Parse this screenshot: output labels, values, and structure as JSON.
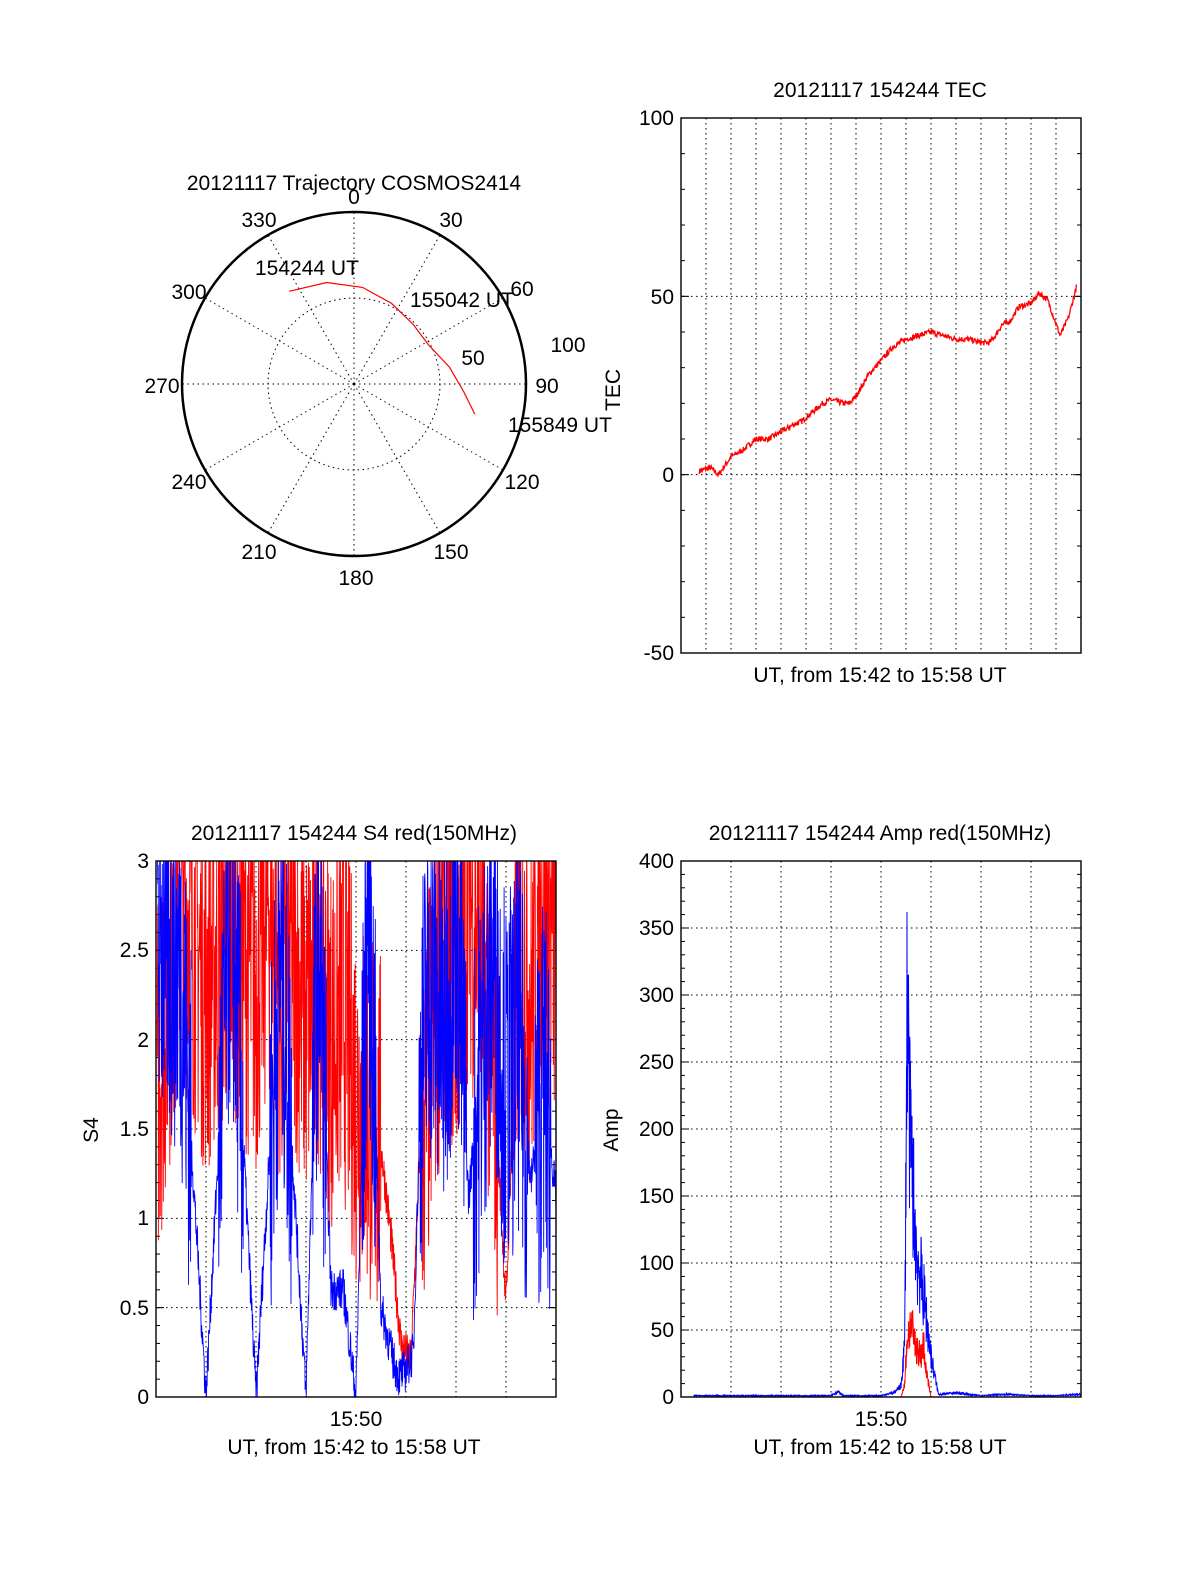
{
  "polar": {
    "title": "20121117 Trajectory COSMOS2414",
    "azimuth_labels": [
      "0",
      "30",
      "60",
      "90",
      "120",
      "150",
      "180",
      "210",
      "240",
      "270",
      "300",
      "330"
    ],
    "elevation_labels": [
      "50",
      "100"
    ],
    "start_label": "154244 UT",
    "mid_label": "155042 UT",
    "end_label": "155849 UT",
    "track_color": "#ff0000"
  },
  "tec": {
    "title": "20121117 154244 TEC",
    "xlabel": "UT, from 15:42 to 15:58 UT",
    "ylabel": "TEC",
    "ytick_labels": [
      "-50",
      "0",
      "50",
      "100"
    ]
  },
  "s4": {
    "title": "20121117 154244 S4 red(150MHz)",
    "xlabel": "UT, from 15:42 to 15:58 UT",
    "ylabel": "S4",
    "xtick_label": "15:50",
    "ytick_labels": [
      "0",
      "0.5",
      "1",
      "1.5",
      "2",
      "2.5",
      "3"
    ]
  },
  "amp": {
    "title": "20121117 154244 Amp red(150MHz)",
    "xlabel": "UT, from 15:42 to 15:58 UT",
    "ylabel": "Amp",
    "xtick_label": "15:50",
    "ytick_labels": [
      "0",
      "50",
      "100",
      "150",
      "200",
      "250",
      "300",
      "350",
      "400"
    ]
  },
  "colors": {
    "red": "#ff0000",
    "blue": "#0000ff"
  },
  "chart_data": [
    {
      "type": "scatter",
      "title": "20121117 Trajectory COSMOS2414",
      "projection": "polar",
      "series": [
        {
          "points": [
            {
              "az": 325,
              "el": 70,
              "ut": "154244"
            },
            {
              "az": 345,
              "el": 65
            },
            {
              "az": 5,
              "el": 60
            },
            {
              "az": 25,
              "el": 55
            },
            {
              "az": 45,
              "el": 52,
              "ut": "155042"
            },
            {
              "az": 62,
              "el": 52
            },
            {
              "az": 80,
              "el": 60
            },
            {
              "az": 94,
              "el": 68
            },
            {
              "az": 104,
              "el": 77,
              "ut": "155849"
            }
          ]
        }
      ],
      "rlim": [
        0,
        100
      ]
    },
    {
      "type": "line",
      "title": "20121117 154244 TEC",
      "xlabel": "UT, from 15:42 to 15:58 UT",
      "ylabel": "TEC",
      "xlim": [
        "15:42",
        "15:58"
      ],
      "ylim": [
        -50,
        100
      ],
      "grid": true,
      "series": [
        {
          "color": "#ff0000",
          "x": [
            "15:42:44",
            "15:43:10",
            "15:43:30",
            "15:44:00",
            "15:44:30",
            "15:45:00",
            "15:45:30",
            "15:46:00",
            "15:46:30",
            "15:46:50",
            "15:47:10",
            "15:47:40",
            "15:48:00",
            "15:48:30",
            "15:48:45",
            "15:49:00",
            "15:49:30",
            "15:50:00",
            "15:50:30",
            "15:51:00",
            "15:51:30",
            "15:52:00",
            "15:52:30",
            "15:53:00",
            "15:53:30",
            "15:54:00",
            "15:54:20",
            "15:54:35",
            "15:54:50",
            "15:55:10",
            "15:55:30",
            "15:56:00",
            "15:56:20",
            "15:56:40",
            "15:57:10",
            "15:57:30",
            "15:57:50"
          ],
          "values": [
            1,
            2,
            0,
            5,
            7,
            10,
            10,
            12,
            14,
            15,
            17,
            20,
            21,
            20,
            20,
            22,
            28,
            32,
            36,
            38,
            39,
            40,
            39,
            38,
            38,
            37,
            37,
            39,
            42,
            43,
            47,
            48,
            51,
            49,
            39,
            44,
            53
          ]
        }
      ]
    },
    {
      "type": "line",
      "title": "20121117 154244 S4 red(150MHz)",
      "xlabel": "UT, from 15:42 to 15:58 UT",
      "ylabel": "S4",
      "xticks": [
        "15:50"
      ],
      "xlim": [
        "15:42",
        "15:58"
      ],
      "ylim": [
        0,
        3
      ],
      "grid": true,
      "series": [
        {
          "color": "#ff0000",
          "x_minutes": [
            0.05,
            1,
            2,
            3,
            4,
            4.5,
            5,
            5.5,
            6,
            6.5,
            7,
            7.5,
            8,
            8.5,
            9,
            9.4,
            9.8,
            10.2,
            10.5,
            11,
            11.5,
            12,
            12.5,
            13,
            13.5,
            14,
            14.5,
            15,
            15.5,
            16
          ],
          "values": [
            1.8,
            2.9,
            2.3,
            2.7,
            2.3,
            2.8,
            2.2,
            2.5,
            2.1,
            2.4,
            2.0,
            2.2,
            1.7,
            1.6,
            1.4,
            0.9,
            0.3,
            0.2,
            1.2,
            1.9,
            2.6,
            2.3,
            2.9,
            2.5,
            1.9,
            0.5,
            2.6,
            2.2,
            2.9,
            2.4
          ]
        },
        {
          "color": "#0000ff",
          "x_minutes": [
            0.05,
            1,
            2,
            3,
            4,
            5,
            6,
            6.5,
            7,
            7.5,
            8,
            8.5,
            9,
            9.5,
            9.7,
            10,
            10.3,
            10.6,
            11,
            11.5,
            12,
            12.5,
            13,
            13.5,
            14,
            14.5,
            15,
            15.5,
            16
          ],
          "values": [
            2.6,
            2.4,
            0,
            2.8,
            0,
            2.5,
            0,
            2.7,
            0.6,
            0.6,
            0,
            2.9,
            0.5,
            0.2,
            0.12,
            0.15,
            0.25,
            1.8,
            2.4,
            2.0,
            2.8,
            1.1,
            1.9,
            2.5,
            1.7,
            2.0,
            1.2,
            1.8,
            1.1
          ]
        }
      ]
    },
    {
      "type": "line",
      "title": "20121117 154244 Amp red(150MHz)",
      "xlabel": "UT, from 15:42 to 15:58 UT",
      "ylabel": "Amp",
      "xticks": [
        "15:50"
      ],
      "xlim": [
        "15:42",
        "15:58"
      ],
      "ylim": [
        0,
        400
      ],
      "grid": true,
      "series": [
        {
          "color": "#ff0000",
          "x_minutes": [
            0,
            8.8,
            8.95,
            9.05,
            9.2,
            9.35,
            9.5,
            9.6,
            9.7,
            9.8,
            10,
            16
          ],
          "values": [
            0,
            0,
            10,
            45,
            55,
            40,
            35,
            30,
            40,
            20,
            0,
            0
          ]
        },
        {
          "color": "#0000ff",
          "x_minutes": [
            0,
            6,
            6.3,
            6.5,
            8,
            8.5,
            8.8,
            8.95,
            9.05,
            9.15,
            9.3,
            9.45,
            9.6,
            9.75,
            9.9,
            10.05,
            10.3,
            11,
            12,
            13,
            14,
            15,
            16
          ],
          "values": [
            1,
            1,
            4,
            1,
            1,
            3,
            8,
            40,
            310,
            200,
            150,
            100,
            90,
            70,
            45,
            25,
            2,
            3,
            1,
            2,
            1,
            1,
            2
          ]
        }
      ]
    }
  ]
}
